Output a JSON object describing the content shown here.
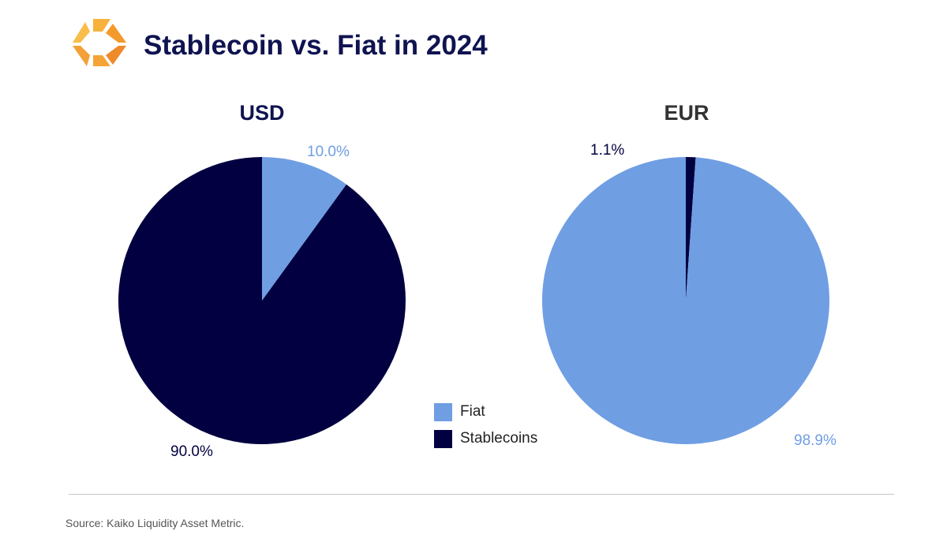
{
  "title": "Stablecoin vs. Fiat in 2024",
  "source": "Source: Kaiko Liquidity Asset Metric.",
  "colors": {
    "fiat": "#6f9ee3",
    "stablecoins": "#020040",
    "title": "#0f1350"
  },
  "legend": {
    "placement": "center",
    "items": [
      {
        "label": "Fiat",
        "color": "#6f9ee3"
      },
      {
        "label": "Stablecoins",
        "color": "#020040"
      }
    ]
  },
  "chart_data": [
    {
      "type": "pie",
      "title": "USD",
      "slices": [
        {
          "name": "Fiat",
          "value": 10.0,
          "label": "10.0%",
          "color": "#6f9ee3"
        },
        {
          "name": "Stablecoins",
          "value": 90.0,
          "label": "90.0%",
          "color": "#020040"
        }
      ]
    },
    {
      "type": "pie",
      "title": "EUR",
      "slices": [
        {
          "name": "Stablecoins",
          "value": 1.1,
          "label": "1.1%",
          "color": "#020040"
        },
        {
          "name": "Fiat",
          "value": 98.9,
          "label": "98.9%",
          "color": "#6f9ee3"
        }
      ]
    }
  ]
}
